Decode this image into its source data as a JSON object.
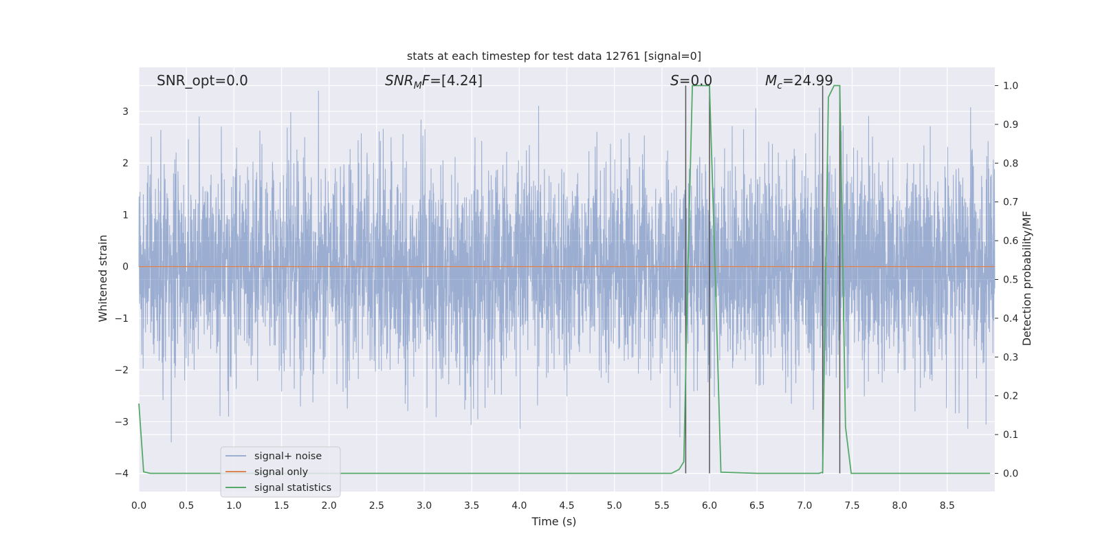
{
  "chart_data": {
    "type": "line",
    "title": "stats at each timestep for test data 12761 [signal=0]",
    "xlabel": "Time (s)",
    "ylabel": "Whitened strain",
    "y2label": "Detection probability/MF",
    "xlim": [
      0,
      9
    ],
    "ylim": [
      -4.35,
      3.85
    ],
    "y2lim": [
      -0.047,
      1.047
    ],
    "xticks": [
      "0.0",
      "0.5",
      "1.0",
      "1.5",
      "2.0",
      "2.5",
      "3.0",
      "3.5",
      "4.0",
      "4.5",
      "5.0",
      "5.5",
      "6.0",
      "6.5",
      "7.0",
      "7.5",
      "8.0",
      "8.5"
    ],
    "yticks": [
      "3",
      "2",
      "1",
      "0",
      "−1",
      "−2",
      "−3",
      "−4"
    ],
    "y2ticks": [
      "1.0",
      "0.9",
      "0.8",
      "0.7",
      "0.6",
      "0.5",
      "0.4",
      "0.3",
      "0.2",
      "0.1",
      "0.0"
    ],
    "grid": true,
    "legend_position": "lower-left",
    "annotations": {
      "snr_opt": "SNR_opt=0.0",
      "snr_mf_sym": "SNR",
      "snr_mf_sub": "M",
      "snr_mf_sym2": "F",
      "snr_mf_val": "=[4.24]",
      "s_sym": "S",
      "s_val": "=0.0",
      "mc_sym": "M",
      "mc_sub": "c",
      "mc_val": "=24.99"
    },
    "series": [
      {
        "name": "signal+ noise",
        "color": "#4c72b0",
        "description": "whitened noisy strain, dense noise spanning about -3.4 to 3.4",
        "amplitude_range": [
          -3.4,
          3.4
        ]
      },
      {
        "name": "signal only",
        "color": "#dd8452",
        "x": [
          0,
          9
        ],
        "y": [
          0,
          0
        ]
      },
      {
        "name": "signal statistics",
        "color": "#55a868",
        "axis": "right",
        "x": [
          0.0,
          0.05,
          0.12,
          0.3,
          1.0,
          2.0,
          3.0,
          4.0,
          5.0,
          5.6,
          5.68,
          5.73,
          5.77,
          5.82,
          6.0,
          6.05,
          6.12,
          6.5,
          7.0,
          7.15,
          7.19,
          7.25,
          7.31,
          7.37,
          7.43,
          7.49,
          8.0,
          8.95
        ],
        "y": [
          0.18,
          0.004,
          0.0,
          0.0,
          0.0,
          0.0,
          0.0,
          0.0,
          0.0,
          0.0,
          0.01,
          0.03,
          0.5,
          1.0,
          1.0,
          0.6,
          0.003,
          0.0,
          0.0,
          0.0,
          0.003,
          0.97,
          1.0,
          1.0,
          0.12,
          0.0,
          0.0,
          0.0
        ]
      }
    ],
    "vlines": [
      5.75,
      6.0,
      7.19,
      7.37
    ]
  }
}
